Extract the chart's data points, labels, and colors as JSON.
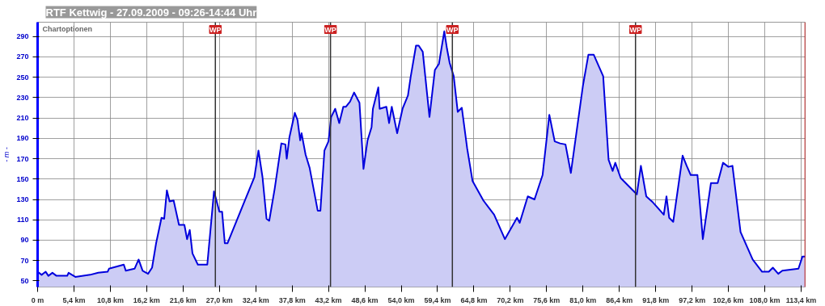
{
  "chart_data": {
    "type": "area",
    "title": "RTF Kettwig - 27.09.2009 - 09:26-14:44 Uhr",
    "ylabel": "- m -",
    "annotations": [
      "Chartoptionen"
    ],
    "x": [
      0,
      0.6,
      1.2,
      1.6,
      2.2,
      2.8,
      4.4,
      4.6,
      5.6,
      7.8,
      9,
      10.4,
      10.6,
      12.8,
      13.1,
      14.4,
      15,
      15.6,
      16.4,
      17,
      17.6,
      18.4,
      18.8,
      19.2,
      19.6,
      20.2,
      21,
      21.8,
      22.2,
      22.6,
      23,
      23.8,
      25.2,
      26.2,
      27,
      27.4,
      27.8,
      28.2,
      32.2,
      32.8,
      33.4,
      34,
      34.4,
      35.2,
      36.2,
      36.8,
      37,
      37.4,
      38.2,
      38.6,
      39,
      39.2,
      39.8,
      40.4,
      41.6,
      42,
      42.6,
      43.2,
      43.6,
      44.2,
      44.8,
      45.4,
      45.8,
      46.4,
      47,
      47.8,
      48.4,
      49,
      49.6,
      49.8,
      50.6,
      50.8,
      51.8,
      52.2,
      52.6,
      53.4,
      54.2,
      55,
      55.4,
      56.2,
      56.6,
      57.2,
      58.2,
      59,
      59.6,
      60.4,
      60.8,
      61.2,
      61.8,
      62.4,
      63,
      63.8,
      64.6,
      66.2,
      67.8,
      69.4,
      71.2,
      71.6,
      72.8,
      73.8,
      75,
      76,
      76.8,
      77.6,
      78.4,
      79.2,
      81,
      81.8,
      82.6,
      84,
      84.8,
      85.4,
      85.8,
      86.6,
      89,
      89.6,
      90.4,
      91.4,
      93,
      93.4,
      93.8,
      94.4,
      95.8,
      96.4,
      97,
      98,
      98.8,
      100,
      101,
      101.8,
      102.6,
      103.2,
      104.4,
      106.2,
      107.6,
      108.6,
      109.2,
      110,
      110.6,
      113,
      113.6,
      114
    ],
    "series": [
      {
        "color": "#0000dd",
        "values": [
          59,
          56,
          59,
          55,
          58,
          55,
          55,
          58,
          54,
          56,
          58,
          59,
          62,
          66,
          60,
          62,
          71,
          60,
          57,
          63,
          87,
          112,
          111,
          139,
          128,
          129,
          105,
          105,
          91,
          100,
          77,
          66,
          66,
          138,
          118,
          118,
          87,
          87,
          152,
          178,
          152,
          111,
          109,
          140,
          185,
          184,
          170,
          191,
          215,
          208,
          188,
          195,
          174,
          161,
          119,
          119,
          178,
          187,
          211,
          219,
          205,
          221,
          221,
          226,
          235,
          225,
          160,
          188,
          201,
          219,
          240,
          219,
          221,
          205,
          221,
          195,
          219,
          232,
          250,
          281,
          281,
          275,
          211,
          257,
          263,
          295,
          278,
          264,
          251,
          216,
          220,
          180,
          148,
          129,
          115,
          91,
          112,
          107,
          133,
          130,
          154,
          213,
          187,
          185,
          184,
          156,
          242,
          272,
          272,
          251,
          169,
          158,
          166,
          151,
          135,
          163,
          133,
          127,
          115,
          133,
          112,
          108,
          173,
          163,
          154,
          154,
          91,
          146,
          146,
          166,
          162,
          163,
          98,
          71,
          59,
          59,
          63,
          57,
          60,
          62,
          74,
          74
        ]
      }
    ],
    "xlim": [
      0,
      114
    ],
    "ylim": [
      44,
      304
    ],
    "xticks": [
      {
        "value": 0,
        "label": "0 m"
      },
      {
        "value": 5.4,
        "label": "5,4 km"
      },
      {
        "value": 10.8,
        "label": "10,8 km"
      },
      {
        "value": 16.2,
        "label": "16,2 km"
      },
      {
        "value": 21.6,
        "label": "21,6 km"
      },
      {
        "value": 27.0,
        "label": "27,0 km"
      },
      {
        "value": 32.4,
        "label": "32,4 km"
      },
      {
        "value": 37.8,
        "label": "37,8 km"
      },
      {
        "value": 43.2,
        "label": "43,2 km"
      },
      {
        "value": 48.6,
        "label": "48,6 km"
      },
      {
        "value": 54.0,
        "label": "54,0 km"
      },
      {
        "value": 59.4,
        "label": "59,4 km"
      },
      {
        "value": 64.8,
        "label": "64,8 km"
      },
      {
        "value": 70.2,
        "label": "70,2 km"
      },
      {
        "value": 75.6,
        "label": "75,6 km"
      },
      {
        "value": 81.0,
        "label": "81,0 km"
      },
      {
        "value": 86.4,
        "label": "86,4 km"
      },
      {
        "value": 91.8,
        "label": "91,8 km"
      },
      {
        "value": 97.2,
        "label": "97,2 km"
      },
      {
        "value": 102.6,
        "label": "102,6 km"
      },
      {
        "value": 108.0,
        "label": "108,0 km"
      },
      {
        "value": 113.4,
        "label": "113,4 km"
      }
    ],
    "yticks": [
      50,
      70,
      90,
      110,
      130,
      150,
      170,
      190,
      210,
      230,
      250,
      270,
      290
    ],
    "ref_lines": [
      {
        "axis": "x",
        "value": 26.4,
        "label": "WP",
        "color": "#333333"
      },
      {
        "axis": "x",
        "value": 43.5,
        "label": "WP",
        "color": "#333333"
      },
      {
        "axis": "x",
        "value": 61.6,
        "label": "WP",
        "color": "#333333"
      },
      {
        "axis": "x",
        "value": 88.8,
        "label": "WP",
        "color": "#333333"
      },
      {
        "axis": "x",
        "value": 114,
        "label": null,
        "color": "#cc0000"
      }
    ],
    "grid": true
  }
}
